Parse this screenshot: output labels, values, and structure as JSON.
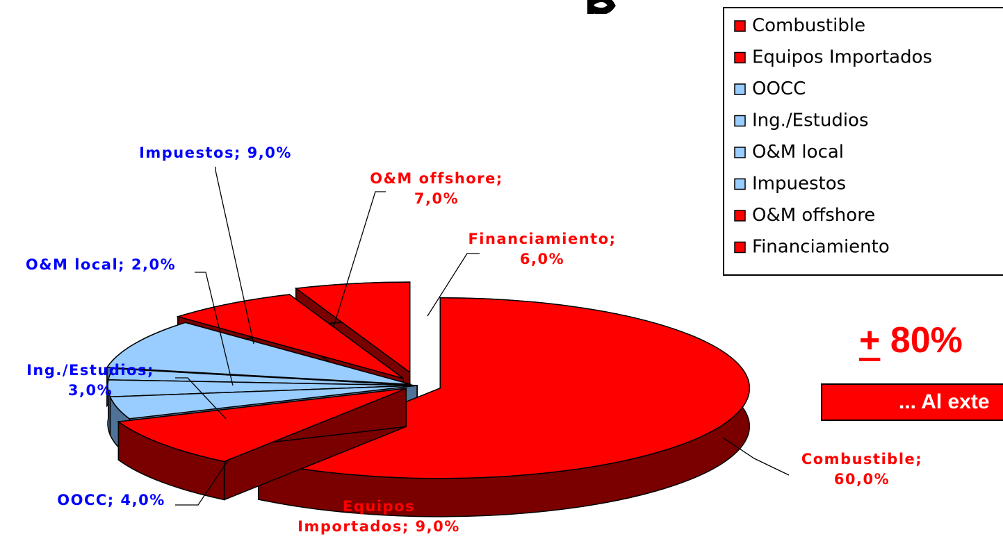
{
  "chart_data": {
    "type": "pie",
    "style": "3d-exploded",
    "slices": [
      {
        "name": "Combustible",
        "value": 60.0,
        "label": "Combustible;",
        "pct": "60,0%",
        "color": "#ff0000",
        "side": "#7a0000",
        "label_color": "#ff0000"
      },
      {
        "name": "Equipos Importados",
        "value": 9.0,
        "label": "Equipos",
        "label2": "Importados; 9,0%",
        "color": "#ff0000",
        "side": "#7a0000",
        "label_color": "#ff0000"
      },
      {
        "name": "OOCC",
        "value": 4.0,
        "label": "OOCC; 4,0%",
        "color": "#99ccff",
        "side": "#4f7296",
        "label_color": "#0000ff"
      },
      {
        "name": "Ing./Estudios",
        "value": 3.0,
        "label": "Ing./Estudios;",
        "pct": "3,0%",
        "color": "#99ccff",
        "side": "#4f7296",
        "label_color": "#0000ff"
      },
      {
        "name": "O&M local",
        "value": 2.0,
        "label": "O&M local; 2,0%",
        "color": "#99ccff",
        "side": "#4f7296",
        "label_color": "#0000ff"
      },
      {
        "name": "Impuestos",
        "value": 9.0,
        "label": "Impuestos; 9,0%",
        "color": "#99ccff",
        "side": "#4f7296",
        "label_color": "#0000ff"
      },
      {
        "name": "O&M offshore",
        "value": 7.0,
        "label": "O&M offshore;",
        "pct": "7,0%",
        "color": "#ff0000",
        "side": "#7a0000",
        "label_color": "#ff0000"
      },
      {
        "name": "Financiamiento",
        "value": 6.0,
        "label": "Financiamiento;",
        "pct": "6,0%",
        "color": "#ff0000",
        "side": "#7a0000",
        "label_color": "#ff0000"
      }
    ],
    "legend": {
      "placement": "top-right",
      "entries": [
        {
          "label": "Combustible",
          "color": "#ff0000"
        },
        {
          "label": "Equipos Importados",
          "color": "#ff0000"
        },
        {
          "label": "OOCC",
          "color": "#99ccff"
        },
        {
          "label": "Ing./Estudios",
          "color": "#99ccff"
        },
        {
          "label": "O&M local",
          "color": "#99ccff"
        },
        {
          "label": "Impuestos",
          "color": "#99ccff"
        },
        {
          "label": "O&M offshore",
          "color": "#ff0000"
        },
        {
          "label": "Financiamiento",
          "color": "#ff0000"
        }
      ]
    }
  },
  "callout": {
    "plus_minus": "+",
    "percent": " 80%",
    "bar_text": "... Al exte"
  }
}
